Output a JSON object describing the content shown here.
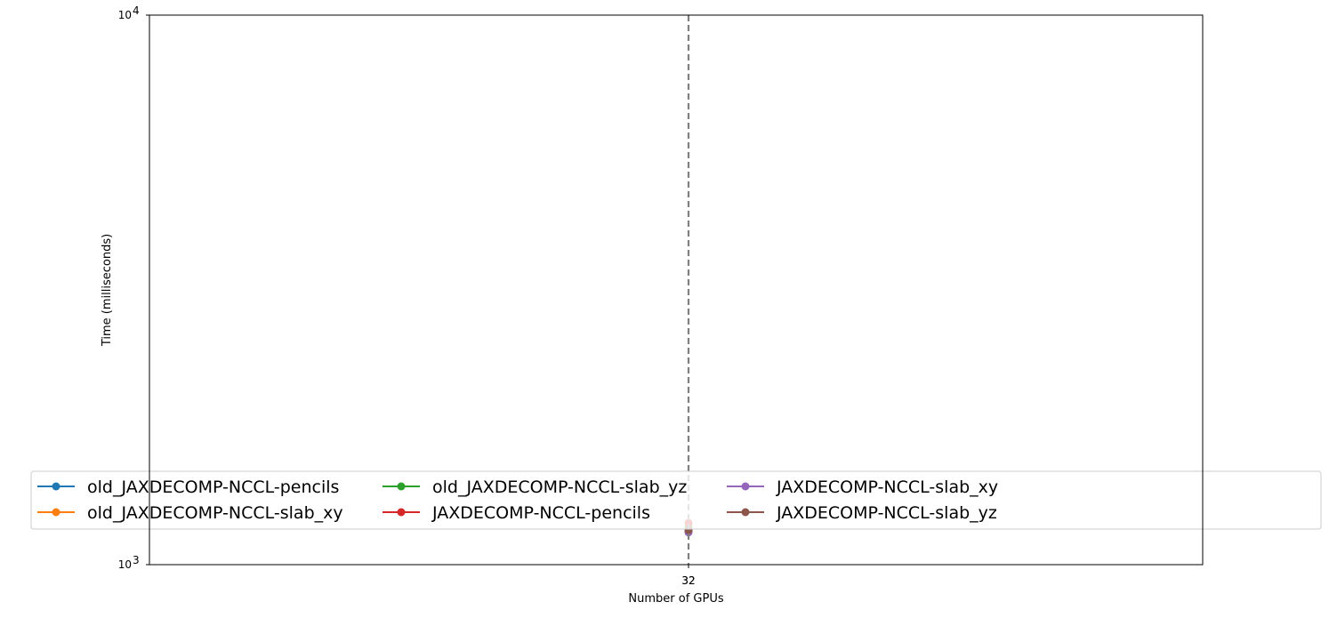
{
  "chart_data": {
    "type": "line",
    "title": "",
    "xlabel": "Number of GPUs",
    "ylabel": "Time (milliseconds)",
    "yscale": "log",
    "ylim": [
      1000,
      10000
    ],
    "y_ticks": [
      {
        "value": 1000,
        "base": "10",
        "exp": "3"
      },
      {
        "value": 10000,
        "base": "10",
        "exp": "4"
      }
    ],
    "x_ticks": [
      "32",
      "32"
    ],
    "vline": {
      "x": 32,
      "style": "dashed",
      "color": "#808080"
    },
    "grid": false,
    "legend": {
      "placement": "lower-center",
      "columns": 4
    },
    "series": [
      {
        "name": "old_JAXDECOMP-NCCL-pencils",
        "color": "#1f77b4",
        "x": [
          32
        ],
        "y": [
          1150
        ]
      },
      {
        "name": "old_JAXDECOMP-NCCL-slab_xy",
        "color": "#ff7f0e",
        "x": [
          32
        ],
        "y": [
          1160
        ]
      },
      {
        "name": "old_JAXDECOMP-NCCL-slab_yz",
        "color": "#2ca02c",
        "x": [
          32
        ],
        "y": [
          1170
        ]
      },
      {
        "name": "JAXDECOMP-NCCL-pencils",
        "color": "#d62728",
        "x": [
          32
        ],
        "y": [
          1190
        ]
      },
      {
        "name": "JAXDECOMP-NCCL-slab_xy",
        "color": "#9467bd",
        "x": [
          32
        ],
        "y": [
          1145
        ]
      },
      {
        "name": "JAXDECOMP-NCCL-slab_yz",
        "color": "#8c564b",
        "x": [
          32
        ],
        "y": [
          1155
        ]
      }
    ]
  }
}
